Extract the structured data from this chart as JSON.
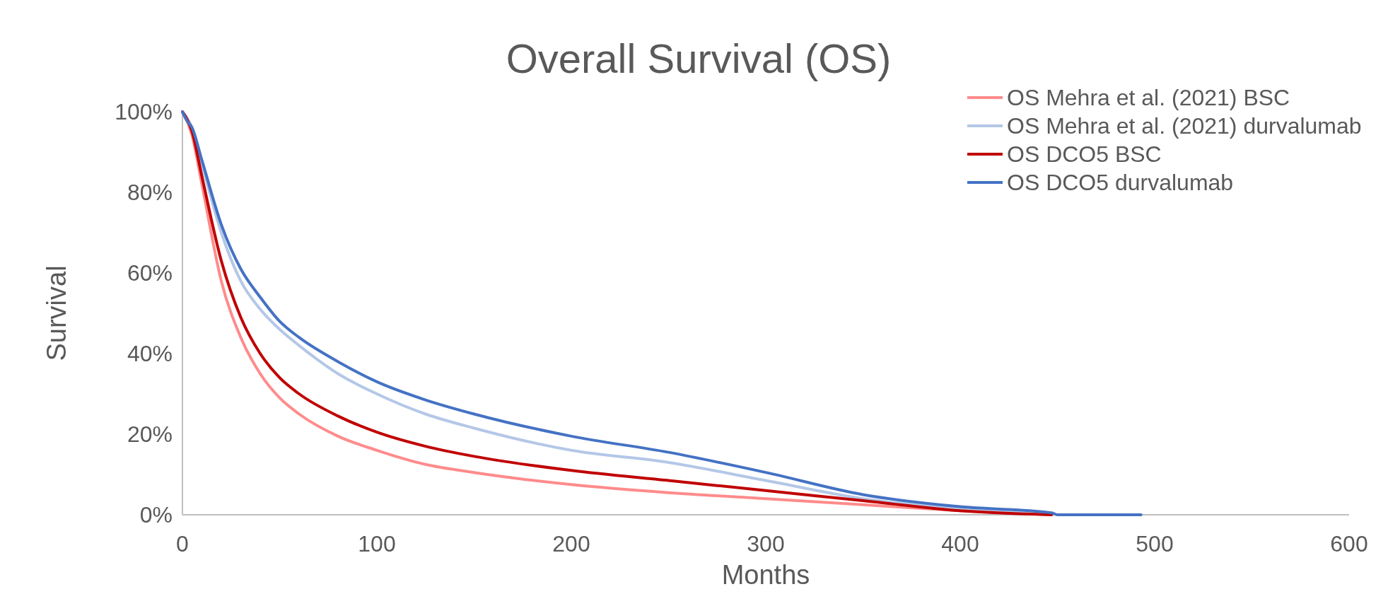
{
  "chart_data": {
    "type": "line",
    "title": "Overall Survival (OS)",
    "xlabel": "Months",
    "ylabel": "Survival",
    "xlim": [
      0,
      600
    ],
    "xticks": [
      0,
      100,
      200,
      300,
      400,
      500,
      600
    ],
    "ylim": [
      0,
      100
    ],
    "yticks": [
      {
        "value": 0,
        "label": "0%"
      },
      {
        "value": 20,
        "label": "20%"
      },
      {
        "value": 40,
        "label": "40%"
      },
      {
        "value": 60,
        "label": "60%"
      },
      {
        "value": 80,
        "label": "80%"
      },
      {
        "value": 100,
        "label": "100%"
      }
    ],
    "grid": false,
    "legend": "top right",
    "marker": "none",
    "line_style": "solid",
    "series": [
      {
        "name": "OS Mehra et al. (2021) BSC",
        "color": "#ff8b8b",
        "x": [
          0,
          5,
          10,
          20,
          30,
          40,
          50,
          60,
          80,
          100,
          125,
          150,
          200,
          250,
          300,
          350,
          400,
          447
        ],
        "values": [
          100,
          94,
          82,
          58,
          44,
          35,
          29,
          25,
          19.5,
          16,
          12.5,
          10.5,
          7.5,
          5.5,
          4,
          2.5,
          1,
          0
        ]
      },
      {
        "name": "OS Mehra et al. (2021) durvalumab",
        "color": "#b4c7e7",
        "x": [
          0,
          5,
          10,
          20,
          30,
          40,
          50,
          60,
          80,
          100,
          125,
          150,
          200,
          250,
          300,
          350,
          400,
          447
        ],
        "values": [
          100,
          96,
          87,
          70,
          58,
          51,
          46,
          42,
          35,
          30,
          25,
          21.5,
          16,
          13,
          8.5,
          4,
          1.5,
          0
        ]
      },
      {
        "name": "OS DCO5 BSC",
        "color": "#c00000",
        "x": [
          0,
          5,
          10,
          20,
          30,
          40,
          50,
          60,
          80,
          100,
          125,
          150,
          200,
          250,
          300,
          350,
          400,
          447
        ],
        "values": [
          100,
          95,
          84,
          63,
          49,
          40,
          34,
          30,
          24.5,
          20.5,
          17,
          14.5,
          11,
          8.5,
          6,
          3.5,
          1,
          0
        ]
      },
      {
        "name": "OS DCO5 durvalumab",
        "color": "#4472c4",
        "x": [
          0,
          2,
          5,
          10,
          20,
          30,
          40,
          50,
          60,
          80,
          100,
          125,
          150,
          200,
          250,
          300,
          350,
          400,
          447,
          450,
          493
        ],
        "values": [
          100,
          98,
          96,
          88,
          72,
          61,
          54,
          48,
          44,
          38,
          33,
          28.5,
          25,
          19.5,
          15.5,
          10.5,
          5,
          2,
          0.5,
          0,
          0
        ]
      }
    ]
  }
}
